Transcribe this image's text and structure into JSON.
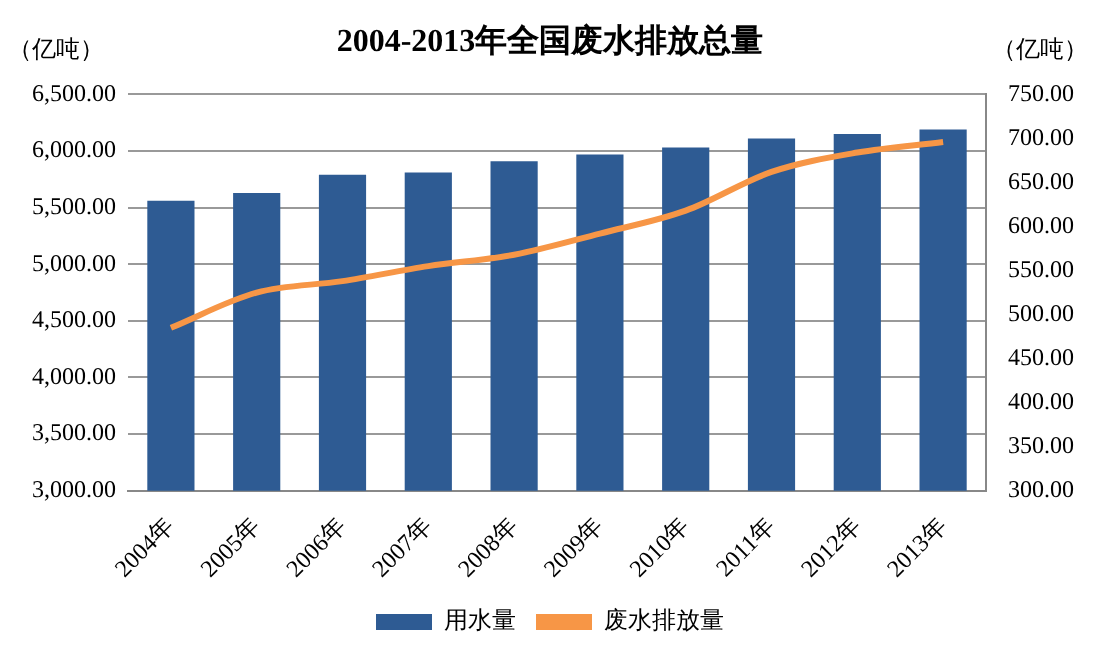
{
  "chart_data": {
    "type": "bar",
    "title": "2004-2013年全国废水排放总量",
    "ylabel": "（亿吨）",
    "y2label": "（亿吨）",
    "categories": [
      "2004年",
      "2005年",
      "2006年",
      "2007年",
      "2008年",
      "2009年",
      "2010年",
      "2011年",
      "2012年",
      "2013年"
    ],
    "series": [
      {
        "name": "用水量",
        "color": "#2e5b93",
        "values": [
          5560,
          5630,
          5790,
          5810,
          5910,
          5970,
          6030,
          6110,
          6150,
          6190
        ]
      },
      {
        "name": "废水排放量",
        "type": "line",
        "axis": "y2",
        "color": "#f79646",
        "values": [
          485,
          525,
          538,
          555,
          568,
          592,
          618,
          662,
          684,
          696
        ]
      }
    ],
    "ylim": [
      3000,
      6500
    ],
    "yticks": [
      {
        "value": 3000,
        "label": "3,000.00"
      },
      {
        "value": 3500,
        "label": "3,500.00"
      },
      {
        "value": 4000,
        "label": "4,000.00"
      },
      {
        "value": 4500,
        "label": "4,500.00"
      },
      {
        "value": 5000,
        "label": "5,000.00"
      },
      {
        "value": 5500,
        "label": "5,500.00"
      },
      {
        "value": 6000,
        "label": "6,000.00"
      },
      {
        "value": 6500,
        "label": "6,500.00"
      }
    ],
    "y2lim": [
      300,
      750
    ],
    "y2ticks": [
      {
        "value": 300,
        "label": "300.00"
      },
      {
        "value": 350,
        "label": "350.00"
      },
      {
        "value": 400,
        "label": "400.00"
      },
      {
        "value": 450,
        "label": "450.00"
      },
      {
        "value": 500,
        "label": "500.00"
      },
      {
        "value": 550,
        "label": "550.00"
      },
      {
        "value": 600,
        "label": "600.00"
      },
      {
        "value": 650,
        "label": "650.00"
      },
      {
        "value": 700,
        "label": "700.00"
      },
      {
        "value": 750,
        "label": "750.00"
      }
    ],
    "grid": "y",
    "legend": "bottom",
    "marker": "none"
  }
}
